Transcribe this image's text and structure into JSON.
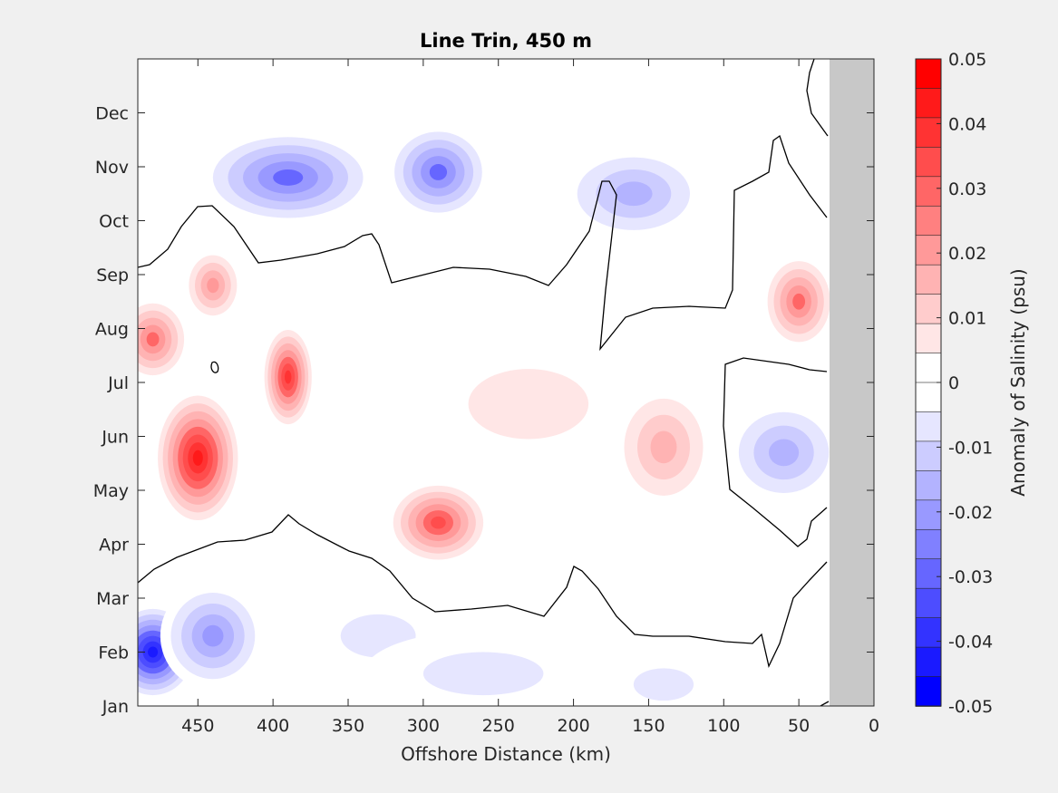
{
  "chart_data": {
    "type": "heatmap",
    "subtype": "filled-contour",
    "title": "Line Trin, 450 m",
    "xlabel": "Offshore Distance (km)",
    "ylabel": "",
    "xlim": [
      490,
      0
    ],
    "x_reversed": true,
    "x_ticks": [
      450,
      400,
      350,
      300,
      250,
      200,
      150,
      100,
      50,
      0
    ],
    "x_tick_labels": [
      "450",
      "400",
      "350",
      "300",
      "250",
      "200",
      "150",
      "100",
      "50",
      "0"
    ],
    "y_ticks": [
      1,
      2,
      3,
      4,
      5,
      6,
      7,
      8,
      9,
      10,
      11,
      12
    ],
    "y_tick_labels": [
      "Jan",
      "Feb",
      "Mar",
      "Apr",
      "May",
      "Jun",
      "Jul",
      "Aug",
      "Sep",
      "Oct",
      "Nov",
      "Dec"
    ],
    "no_data_region_x": [
      30,
      0
    ],
    "no_data_color": "#c8c8c8",
    "zero_contour_color": "#000000",
    "colorbar": {
      "label": "Anomaly of Salinity (psu)",
      "clim": [
        -0.05,
        0.05
      ],
      "ticks": [
        0.05,
        0.04,
        0.03,
        0.02,
        0.01,
        0,
        -0.01,
        -0.02,
        -0.03,
        -0.04,
        -0.05
      ],
      "tick_labels": [
        "0.05",
        "0.04",
        "0.03",
        "0.02",
        "0.01",
        "0",
        "-0.01",
        "-0.02",
        "-0.03",
        "-0.04",
        "-0.05"
      ],
      "levels": 20,
      "colors": [
        "#0000ff",
        "#1a1aff",
        "#3333ff",
        "#4d4dff",
        "#6666ff",
        "#8080ff",
        "#9999ff",
        "#b3b3ff",
        "#ccccff",
        "#e6e6ff",
        "#ffffff",
        "#ffffff",
        "#ffe6e6",
        "#ffcccc",
        "#ffb3b3",
        "#ff9999",
        "#ff8080",
        "#ff6666",
        "#ff4d4d",
        "#ff3333",
        "#ff1a1a",
        "#ff0000"
      ]
    },
    "anomaly_features": [
      {
        "x": 480,
        "y": 2.0,
        "value": -0.045,
        "rx": 30,
        "ry": 0.9
      },
      {
        "x": 440,
        "y": 2.3,
        "value": -0.025,
        "rx": 35,
        "ry": 1.0
      },
      {
        "x": 330,
        "y": 2.3,
        "value": -0.012,
        "rx": 50,
        "ry": 0.8
      },
      {
        "x": 260,
        "y": 1.6,
        "value": -0.008,
        "rx": 80,
        "ry": 0.8
      },
      {
        "x": 140,
        "y": 1.4,
        "value": -0.012,
        "rx": 40,
        "ry": 0.6
      },
      {
        "x": 450,
        "y": 5.6,
        "value": 0.045,
        "rx": 30,
        "ry": 1.3
      },
      {
        "x": 390,
        "y": 7.1,
        "value": 0.042,
        "rx": 18,
        "ry": 1.0
      },
      {
        "x": 290,
        "y": 4.4,
        "value": 0.037,
        "rx": 35,
        "ry": 0.8
      },
      {
        "x": 230,
        "y": 6.6,
        "value": 0.012,
        "rx": 80,
        "ry": 1.3
      },
      {
        "x": 140,
        "y": 5.8,
        "value": 0.022,
        "rx": 35,
        "ry": 1.2
      },
      {
        "x": 440,
        "y": 8.8,
        "value": 0.025,
        "rx": 20,
        "ry": 0.7
      },
      {
        "x": 480,
        "y": 7.8,
        "value": 0.03,
        "rx": 25,
        "ry": 0.8
      },
      {
        "x": 50,
        "y": 8.5,
        "value": 0.03,
        "rx": 25,
        "ry": 0.9
      },
      {
        "x": 60,
        "y": 5.7,
        "value": -0.02,
        "rx": 40,
        "ry": 1.0
      },
      {
        "x": 390,
        "y": 10.8,
        "value": -0.03,
        "rx": 60,
        "ry": 0.9
      },
      {
        "x": 290,
        "y": 10.9,
        "value": -0.028,
        "rx": 35,
        "ry": 0.9
      },
      {
        "x": 160,
        "y": 10.5,
        "value": -0.02,
        "rx": 50,
        "ry": 0.9
      },
      {
        "x": 70,
        "y": 11.3,
        "value": 0.005,
        "rx": 50,
        "ry": 1.5
      }
    ]
  }
}
